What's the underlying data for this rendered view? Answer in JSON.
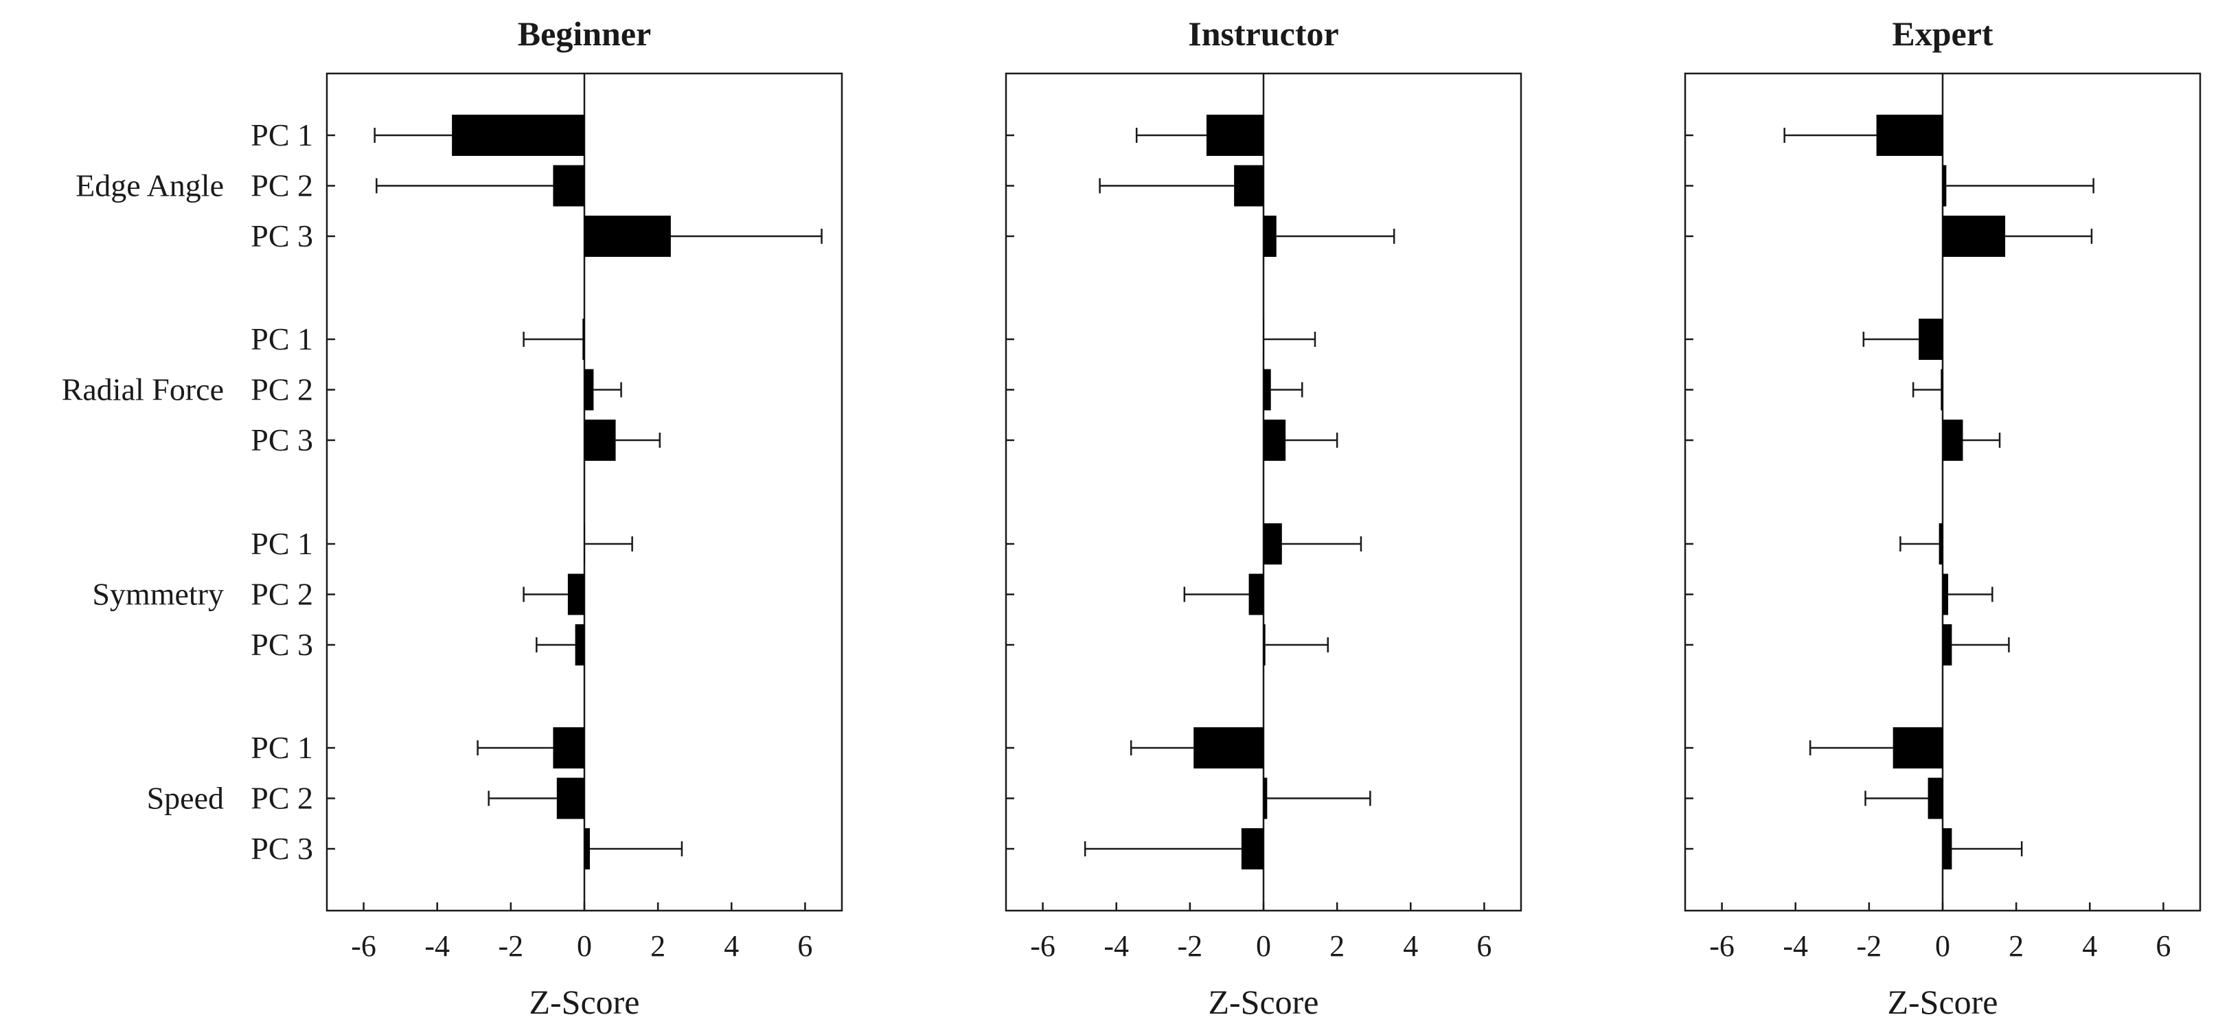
{
  "chart_data": [
    {
      "type": "bar",
      "title": "Beginner",
      "xlabel": "Z-Score",
      "xlim": [
        -7,
        7
      ],
      "xticks": [
        "-6",
        "-4",
        "-2",
        "0",
        "2",
        "4",
        "6"
      ],
      "xtick_values": [
        -6,
        -4,
        -2,
        0,
        2,
        4,
        6
      ],
      "groups": [
        "Edge Angle",
        "Radial Force",
        "Symmetry",
        "Speed"
      ],
      "categories": [
        "PC 1",
        "PC 2",
        "PC 3"
      ],
      "values": [
        [
          -3.6,
          -0.85,
          2.35
        ],
        [
          -0.05,
          0.25,
          0.85
        ],
        [
          0.0,
          -0.45,
          -0.25
        ],
        [
          -0.85,
          -0.75,
          0.15
        ]
      ],
      "error_bars": [
        [
          -5.7,
          -5.65,
          6.45
        ],
        [
          -1.65,
          1.0,
          2.05
        ],
        [
          1.3,
          -1.65,
          -1.3
        ],
        [
          -2.9,
          -2.6,
          2.65
        ]
      ]
    },
    {
      "type": "bar",
      "title": "Instructor",
      "xlabel": "Z-Score",
      "xlim": [
        -7,
        7
      ],
      "xticks": [
        "-6",
        "-4",
        "-2",
        "0",
        "2",
        "4",
        "6"
      ],
      "xtick_values": [
        -6,
        -4,
        -2,
        0,
        2,
        4,
        6
      ],
      "groups": [
        "Edge Angle",
        "Radial Force",
        "Symmetry",
        "Speed"
      ],
      "categories": [
        "PC 1",
        "PC 2",
        "PC 3"
      ],
      "values": [
        [
          -1.55,
          -0.8,
          0.35
        ],
        [
          0.0,
          0.2,
          0.6
        ],
        [
          0.5,
          -0.4,
          0.05
        ],
        [
          -1.9,
          0.1,
          -0.6
        ]
      ],
      "error_bars": [
        [
          -3.45,
          -4.45,
          3.55
        ],
        [
          1.4,
          1.05,
          2.0
        ],
        [
          2.65,
          -2.15,
          1.75
        ],
        [
          -3.6,
          2.9,
          -4.85
        ]
      ]
    },
    {
      "type": "bar",
      "title": "Expert",
      "xlabel": "Z-Score",
      "xlim": [
        -7,
        7
      ],
      "xticks": [
        "-6",
        "-4",
        "-2",
        "0",
        "2",
        "4",
        "6"
      ],
      "xtick_values": [
        -6,
        -4,
        -2,
        0,
        2,
        4,
        6
      ],
      "groups": [
        "Edge Angle",
        "Radial Force",
        "Symmetry",
        "Speed"
      ],
      "categories": [
        "PC 1",
        "PC 2",
        "PC 3"
      ],
      "values": [
        [
          -1.8,
          0.1,
          1.7
        ],
        [
          -0.65,
          -0.05,
          0.55
        ],
        [
          -0.1,
          0.15,
          0.25
        ],
        [
          -1.35,
          -0.4,
          0.25
        ]
      ],
      "error_bars": [
        [
          -4.3,
          4.1,
          4.05
        ],
        [
          -2.15,
          -0.8,
          1.55
        ],
        [
          -1.15,
          1.35,
          1.8
        ],
        [
          -3.6,
          -2.1,
          2.15
        ]
      ]
    }
  ]
}
